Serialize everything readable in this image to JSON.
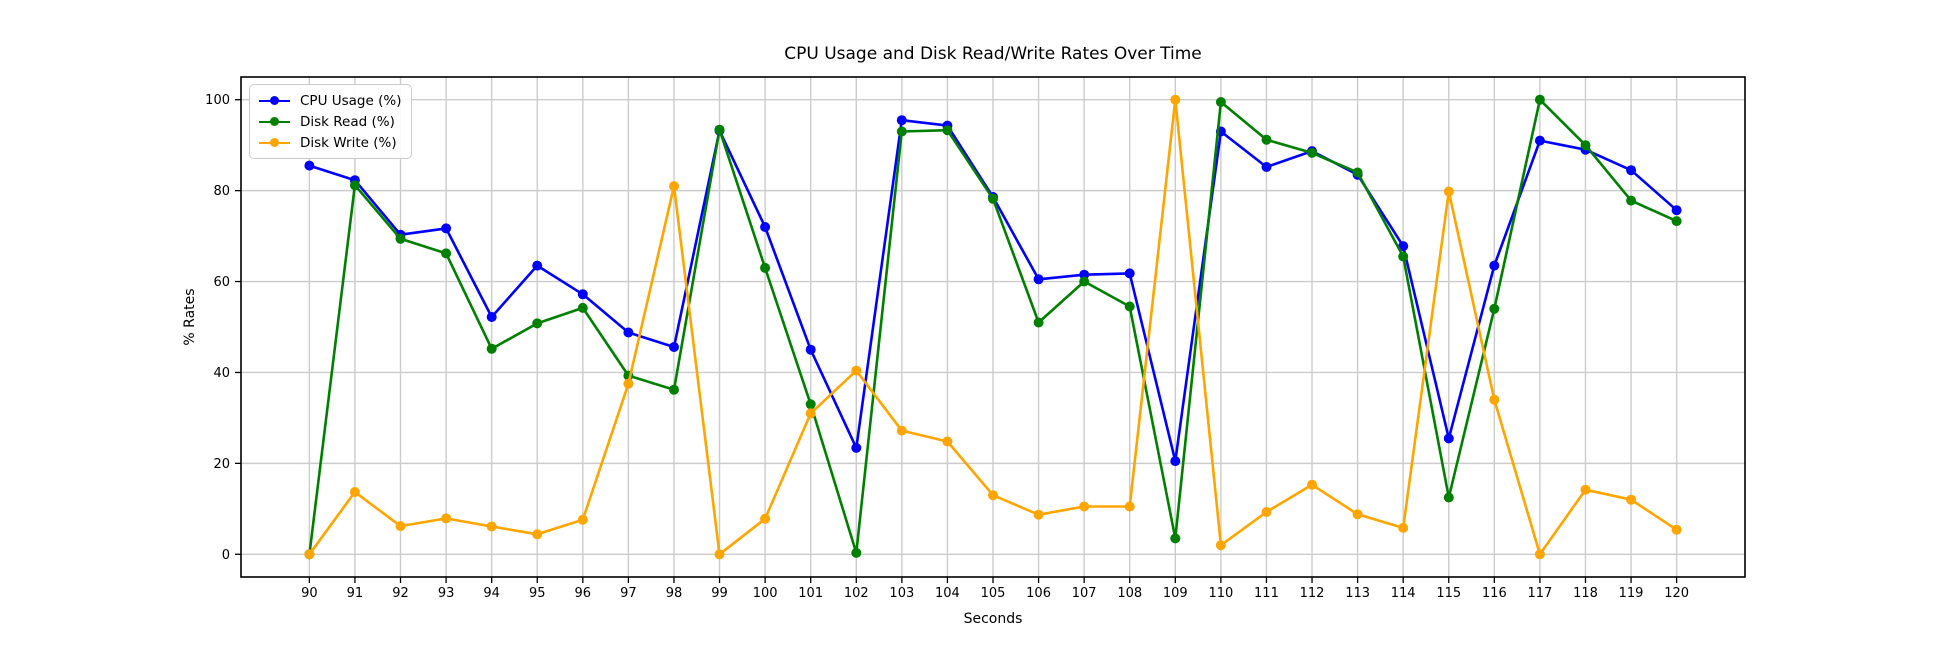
{
  "chart_data": {
    "type": "line",
    "title": "CPU Usage and Disk Read/Write Rates Over Time",
    "xlabel": "Seconds",
    "ylabel": "% Rates",
    "x": [
      90,
      91,
      92,
      93,
      94,
      95,
      96,
      97,
      98,
      99,
      100,
      101,
      102,
      103,
      104,
      105,
      106,
      107,
      108,
      109,
      110,
      111,
      112,
      113,
      114,
      115,
      116,
      117,
      118,
      119,
      120
    ],
    "xlim": [
      88.5,
      121.5
    ],
    "ylim": [
      -5,
      105
    ],
    "xticks": [
      90,
      91,
      92,
      93,
      94,
      95,
      96,
      97,
      98,
      99,
      100,
      101,
      102,
      103,
      104,
      105,
      106,
      107,
      108,
      109,
      110,
      111,
      112,
      113,
      114,
      115,
      116,
      117,
      118,
      119,
      120
    ],
    "yticks": [
      0,
      20,
      40,
      60,
      80,
      100
    ],
    "grid": true,
    "grid_color": "#cccccc",
    "spine_color": "#000000",
    "legend_position": "upper left",
    "series": [
      {
        "name": "CPU Usage (%)",
        "color": "#0000ff",
        "values": [
          85.5,
          82.3,
          70.3,
          71.7,
          52.2,
          63.5,
          57.2,
          48.8,
          45.6,
          93.2,
          72.0,
          45.0,
          23.4,
          95.5,
          94.3,
          78.6,
          60.5,
          61.5,
          61.8,
          20.5,
          93.0,
          85.2,
          88.7,
          83.5,
          67.8,
          25.5,
          63.5,
          91.0,
          89.0,
          84.5,
          75.7
        ]
      },
      {
        "name": "Disk Read (%)",
        "color": "#008000",
        "values": [
          0.0,
          81.2,
          69.4,
          66.2,
          45.2,
          50.8,
          54.2,
          39.3,
          36.2,
          93.4,
          63.0,
          33.0,
          0.3,
          93.0,
          93.3,
          78.2,
          51.0,
          60.0,
          54.5,
          3.5,
          99.5,
          91.2,
          88.3,
          84.0,
          65.5,
          12.5,
          54.0,
          100.0,
          90.0,
          77.8,
          73.3
        ]
      },
      {
        "name": "Disk Write (%)",
        "color": "#ffa500",
        "values": [
          0.0,
          13.7,
          6.2,
          7.9,
          6.1,
          4.4,
          7.6,
          37.5,
          81.0,
          0.0,
          7.8,
          31.0,
          40.4,
          27.2,
          24.8,
          13.0,
          8.7,
          10.5,
          10.5,
          100.0,
          2.0,
          9.3,
          15.3,
          8.8,
          5.8,
          79.8,
          34.0,
          0.0,
          14.2,
          12.0,
          5.4
        ]
      }
    ]
  }
}
